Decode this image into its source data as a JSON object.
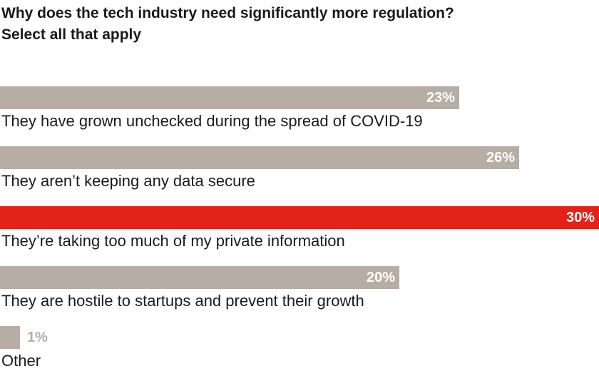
{
  "title": {
    "line1": "Why does the tech industry need significantly more regulation?",
    "line2": "Select all that apply"
  },
  "colors": {
    "default_bar": "#b6ada5",
    "highlight_bar": "#e32219",
    "value_text": "#ffffff",
    "value_text_outside": "#b6ada5"
  },
  "chart_data": {
    "type": "bar",
    "orientation": "horizontal",
    "title": "Why does the tech industry need significantly more regulation?",
    "subtitle": "Select all that apply",
    "xlabel": "",
    "ylabel": "",
    "xlim": [
      0,
      30
    ],
    "unit": "%",
    "highlight_index": 2,
    "categories": [
      "They have grown unchecked during the spread of COVID-19",
      "They aren’t keeping any data secure",
      "They’re taking too much of my private information",
      "They are hostile to startups and prevent their growth",
      "Other"
    ],
    "values": [
      23,
      26,
      30,
      20,
      1
    ],
    "value_labels": [
      "23%",
      "26%",
      "30%",
      "20%",
      "1%"
    ]
  }
}
